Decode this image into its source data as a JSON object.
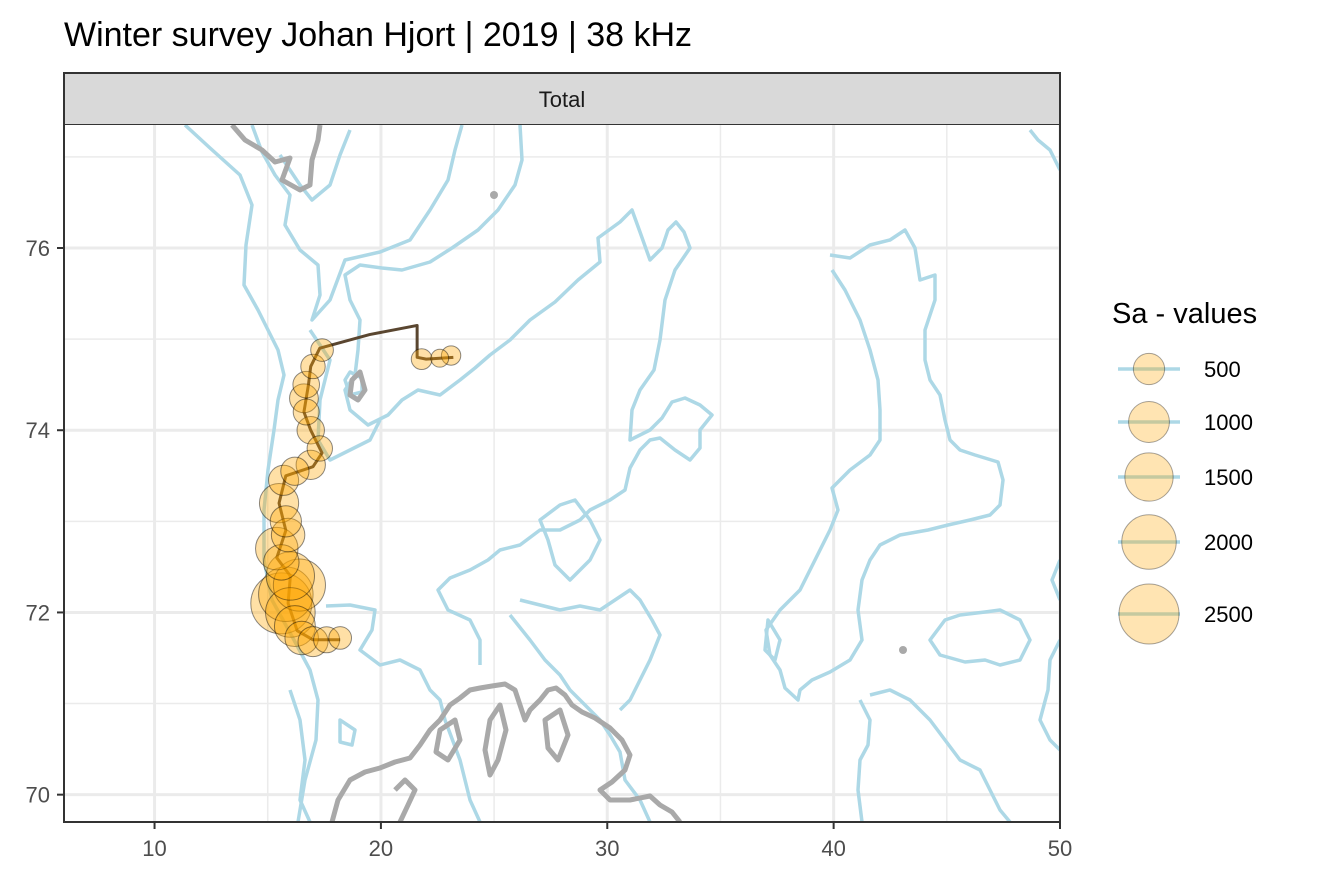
{
  "chart_data": {
    "type": "scatter",
    "title": "Winter survey Johan Hjort | 2019 | 38 kHz",
    "facet_label": "Total",
    "xlabel": "",
    "ylabel": "",
    "xlim": [
      6,
      50
    ],
    "ylim": [
      69.7,
      77.35
    ],
    "x_ticks": [
      10,
      20,
      30,
      40,
      50
    ],
    "y_ticks": [
      70,
      72,
      74,
      76
    ],
    "x_tick_labels": [
      "10",
      "20",
      "30",
      "40",
      "50"
    ],
    "y_tick_labels": [
      "70",
      "72",
      "74",
      "76"
    ],
    "grid": true,
    "legend": {
      "title": "Sa - values",
      "position": "right",
      "entries": [
        {
          "label": "500",
          "value": 500
        },
        {
          "label": "1000",
          "value": 1000
        },
        {
          "label": "1500",
          "value": 1500
        },
        {
          "label": "2000",
          "value": 2000
        },
        {
          "label": "2500",
          "value": 2500
        }
      ]
    },
    "colors": {
      "point_fill": "#FFA500",
      "point_stroke": "#000000",
      "contour": "#ADD8E6",
      "land": "#A9A9A9",
      "track": "#5A4630",
      "panel_strip": "#D9D9D9"
    },
    "cruise_track": [
      [
        23.2,
        74.8
      ],
      [
        22.0,
        74.78
      ],
      [
        21.6,
        74.8
      ],
      [
        21.6,
        75.15
      ],
      [
        19.5,
        75.05
      ],
      [
        17.3,
        74.9
      ],
      [
        16.9,
        74.7
      ],
      [
        16.8,
        74.5
      ],
      [
        16.6,
        74.2
      ],
      [
        16.9,
        74.0
      ],
      [
        17.4,
        73.75
      ],
      [
        17.0,
        73.6
      ],
      [
        15.8,
        73.5
      ],
      [
        15.5,
        73.2
      ],
      [
        15.8,
        72.9
      ],
      [
        15.4,
        72.6
      ],
      [
        16.0,
        72.4
      ],
      [
        15.9,
        72.1
      ],
      [
        16.3,
        71.8
      ],
      [
        17.0,
        71.7
      ],
      [
        18.2,
        71.7
      ]
    ],
    "points": [
      {
        "lon": 23.1,
        "lat": 74.82,
        "sa": 120
      },
      {
        "lon": 22.6,
        "lat": 74.79,
        "sa": 90
      },
      {
        "lon": 21.8,
        "lat": 74.78,
        "sa": 150
      },
      {
        "lon": 17.4,
        "lat": 74.88,
        "sa": 200
      },
      {
        "lon": 17.0,
        "lat": 74.7,
        "sa": 250
      },
      {
        "lon": 16.7,
        "lat": 74.5,
        "sa": 320
      },
      {
        "lon": 16.6,
        "lat": 74.35,
        "sa": 400
      },
      {
        "lon": 16.7,
        "lat": 74.2,
        "sa": 300
      },
      {
        "lon": 16.9,
        "lat": 74.0,
        "sa": 350
      },
      {
        "lon": 17.3,
        "lat": 73.8,
        "sa": 280
      },
      {
        "lon": 16.9,
        "lat": 73.62,
        "sa": 420
      },
      {
        "lon": 16.2,
        "lat": 73.55,
        "sa": 380
      },
      {
        "lon": 15.7,
        "lat": 73.45,
        "sa": 450
      },
      {
        "lon": 15.5,
        "lat": 73.2,
        "sa": 900
      },
      {
        "lon": 15.8,
        "lat": 73.0,
        "sa": 500
      },
      {
        "lon": 15.9,
        "lat": 72.85,
        "sa": 600
      },
      {
        "lon": 15.4,
        "lat": 72.7,
        "sa": 1100
      },
      {
        "lon": 15.6,
        "lat": 72.55,
        "sa": 700
      },
      {
        "lon": 16.0,
        "lat": 72.4,
        "sa": 1500
      },
      {
        "lon": 16.4,
        "lat": 72.3,
        "sa": 1800
      },
      {
        "lon": 15.8,
        "lat": 72.2,
        "sa": 2000
      },
      {
        "lon": 15.6,
        "lat": 72.1,
        "sa": 2600
      },
      {
        "lon": 16.0,
        "lat": 72.0,
        "sa": 1600
      },
      {
        "lon": 16.2,
        "lat": 71.85,
        "sa": 1000
      },
      {
        "lon": 16.5,
        "lat": 71.72,
        "sa": 600
      },
      {
        "lon": 17.0,
        "lat": 71.68,
        "sa": 450
      },
      {
        "lon": 17.6,
        "lat": 71.7,
        "sa": 300
      },
      {
        "lon": 18.2,
        "lat": 71.72,
        "sa": 200
      }
    ]
  }
}
